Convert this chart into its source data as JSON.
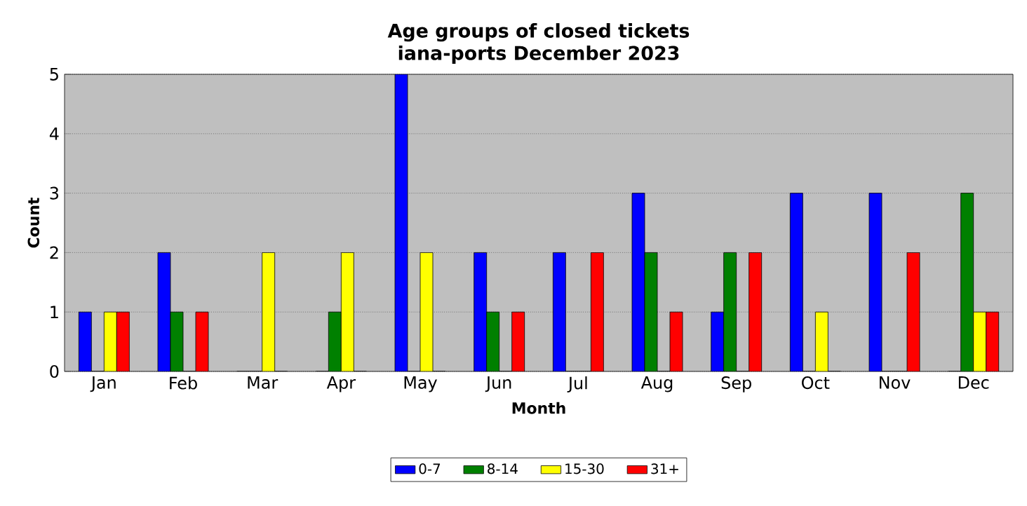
{
  "chart_data": {
    "type": "bar",
    "title": "Age groups of closed tickets",
    "subtitle": "iana-ports December 2023",
    "xlabel": "Month",
    "ylabel": "Count",
    "categories": [
      "Jan",
      "Feb",
      "Mar",
      "Apr",
      "May",
      "Jun",
      "Jul",
      "Aug",
      "Sep",
      "Oct",
      "Nov",
      "Dec"
    ],
    "series": [
      {
        "name": "0-7",
        "color": "#0000ff",
        "values": [
          1,
          2,
          0,
          0,
          5,
          2,
          2,
          3,
          1,
          3,
          3,
          0
        ]
      },
      {
        "name": "8-14",
        "color": "#008000",
        "values": [
          0,
          1,
          0,
          1,
          0,
          1,
          0,
          2,
          2,
          0,
          0,
          3
        ]
      },
      {
        "name": "15-30",
        "color": "#ffff00",
        "values": [
          1,
          0,
          2,
          2,
          2,
          0,
          0,
          0,
          0,
          1,
          0,
          1
        ]
      },
      {
        "name": "31+",
        "color": "#ff0000",
        "values": [
          1,
          1,
          0,
          0,
          0,
          1,
          2,
          1,
          2,
          0,
          2,
          1
        ]
      }
    ],
    "ylim": [
      0,
      5
    ],
    "yticks": [
      0,
      1,
      2,
      3,
      4,
      5
    ],
    "grid": "y",
    "legend": "bottom"
  }
}
